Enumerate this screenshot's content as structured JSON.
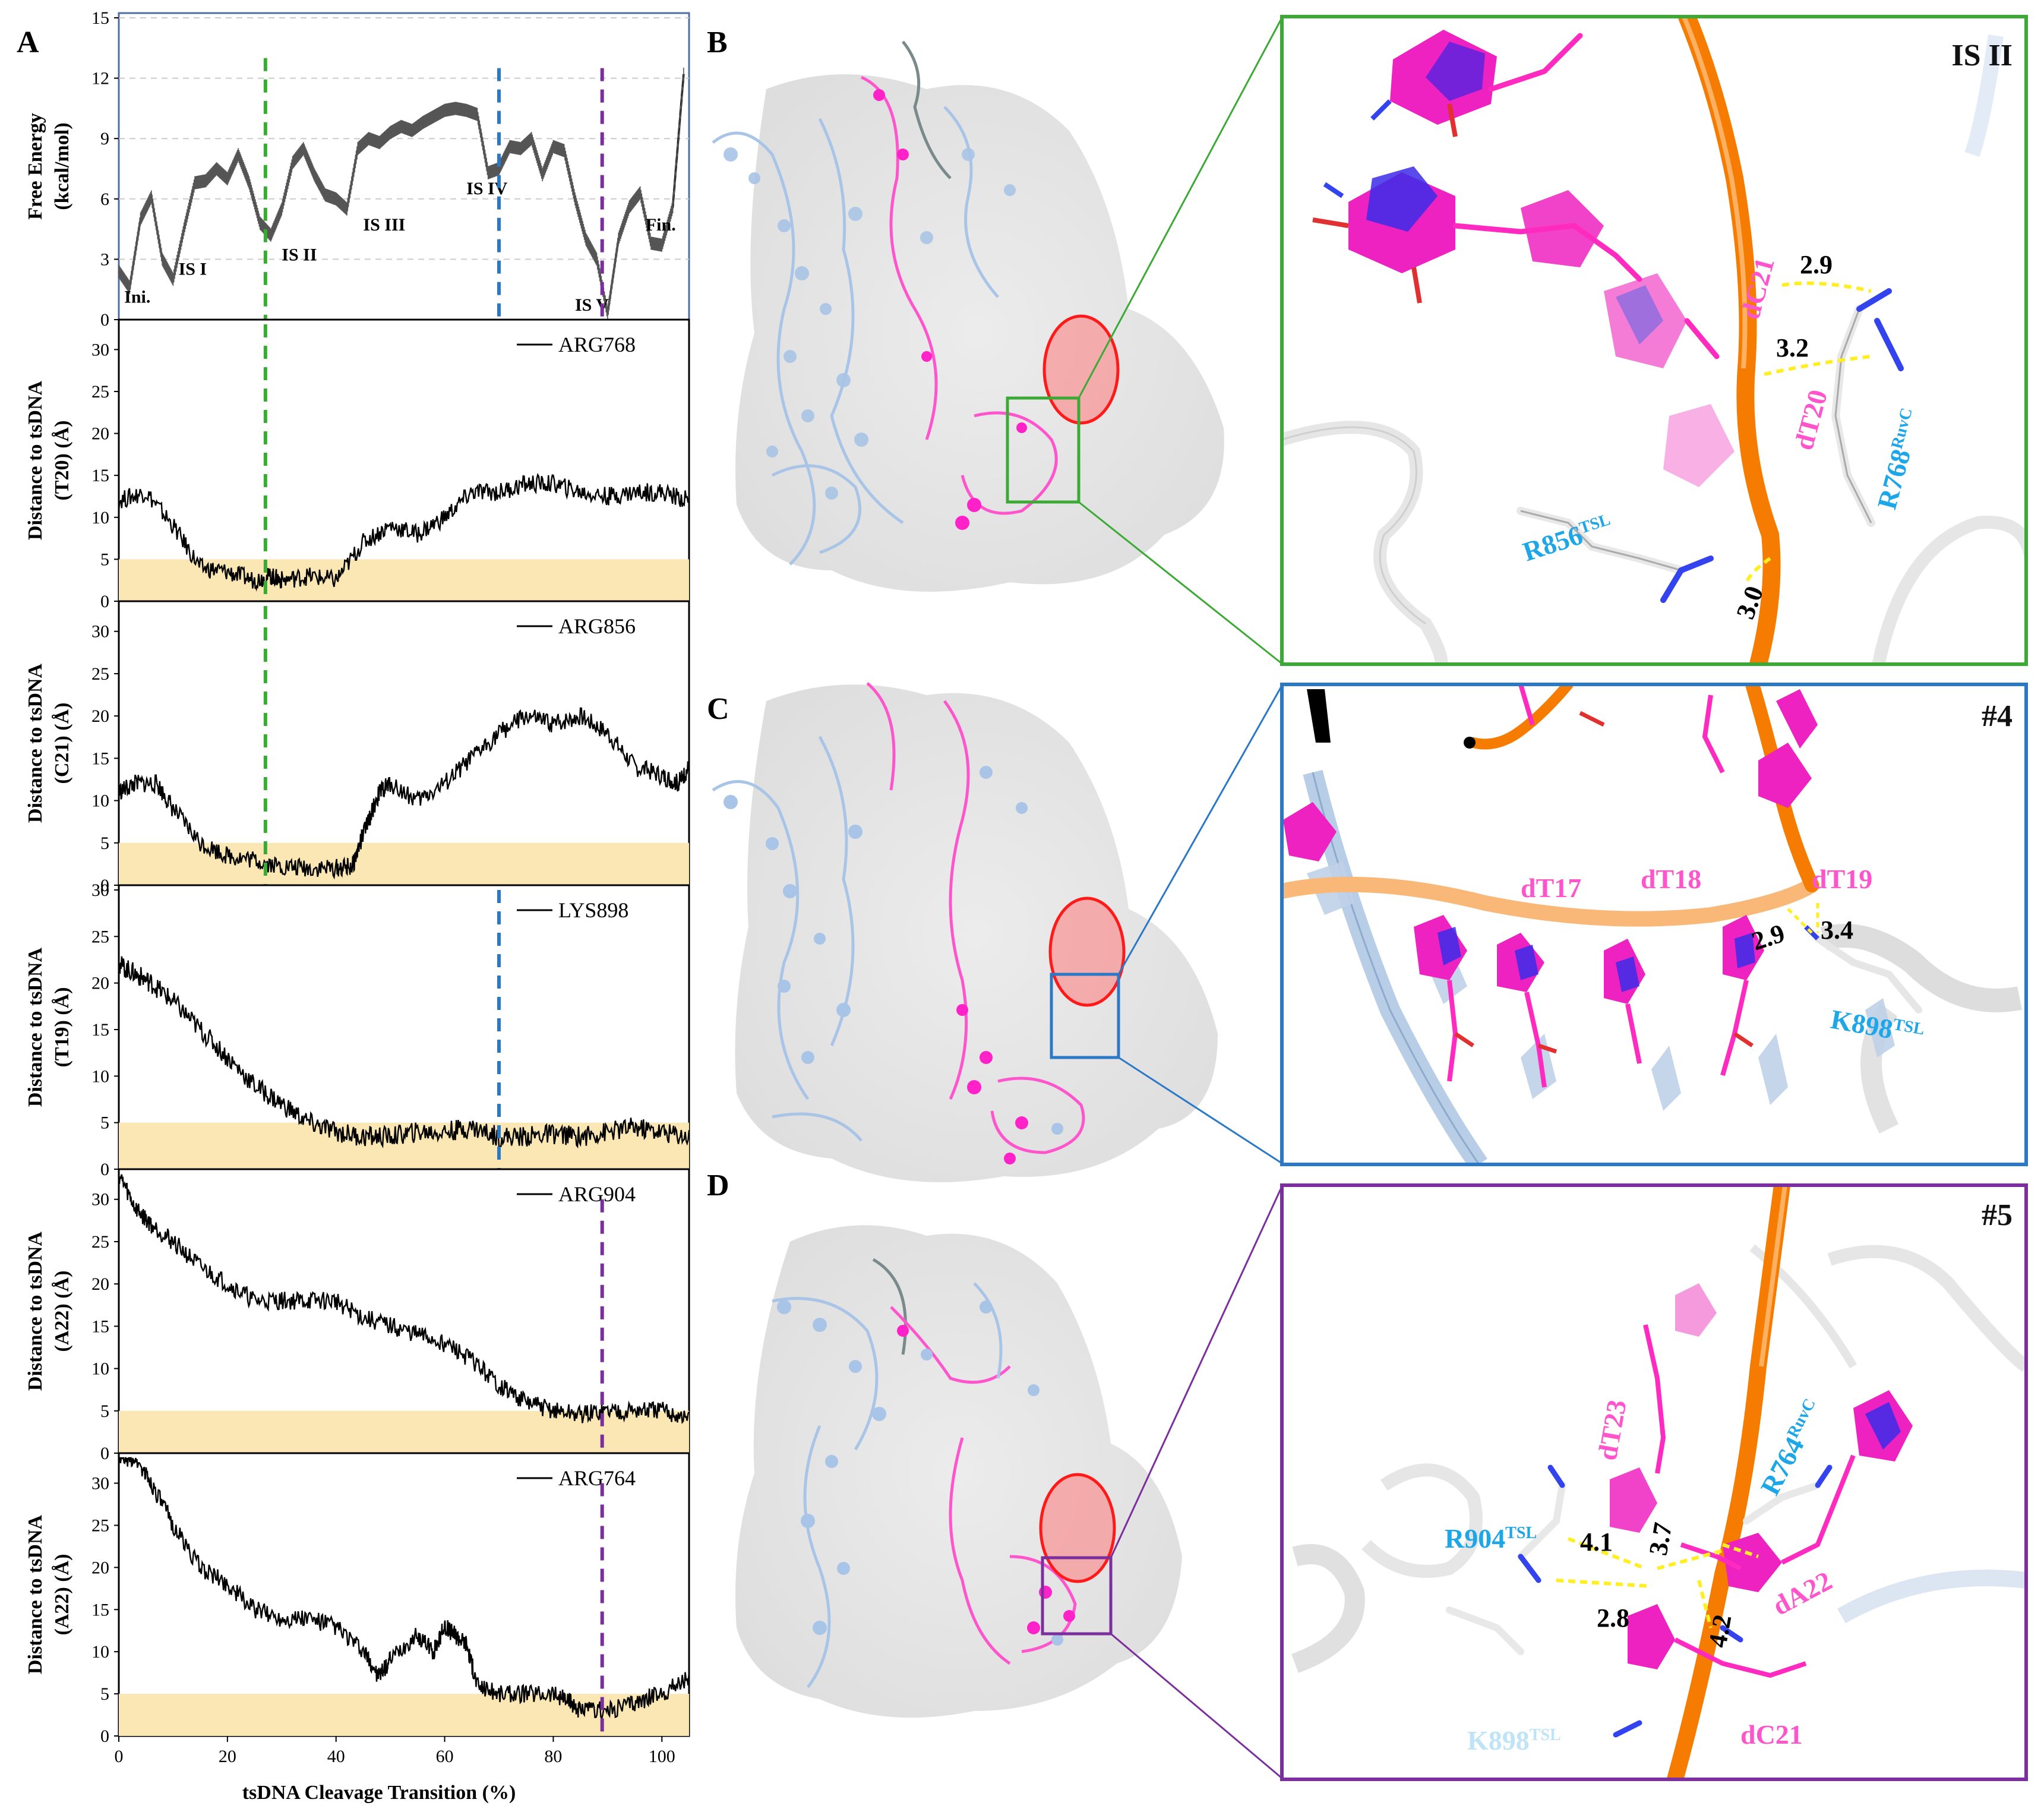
{
  "panel_labels": [
    "A",
    "B",
    "C",
    "D"
  ],
  "colors": {
    "green": "#3aaa35",
    "blue": "#2a78c8",
    "purple": "#7b2f9e",
    "band": "#fbe7b3",
    "pink": "#ff22c8",
    "orange": "#f57c00",
    "cyan_label": "#1ea7e8",
    "dna_label": "#ff55cc"
  },
  "chart_data": [
    {
      "type": "line",
      "id": "free-energy",
      "ylabel_line1": "Free Energy",
      "ylabel_line2": "(kcal/mol)",
      "ylim": [
        0,
        15
      ],
      "yticks": [
        "0",
        "3",
        "6",
        "9",
        "12",
        "15"
      ],
      "xlim": [
        0,
        105
      ],
      "grid": true,
      "error_bars": true,
      "x": [
        0,
        2,
        4,
        6,
        8,
        10,
        12,
        14,
        16,
        18,
        20,
        22,
        24,
        26,
        28,
        30,
        32,
        34,
        36,
        38,
        40,
        42,
        44,
        46,
        48,
        50,
        52,
        54,
        56,
        58,
        60,
        62,
        64,
        66,
        68,
        70,
        72,
        74,
        76,
        78,
        80,
        82,
        84,
        86,
        88,
        90,
        92,
        94,
        96,
        98,
        100,
        102,
        104
      ],
      "y": [
        2.4,
        1.6,
        5.0,
        6.1,
        3.0,
        2.0,
        4.5,
        6.8,
        6.9,
        7.5,
        7.0,
        8.2,
        6.8,
        4.8,
        4.2,
        5.5,
        7.8,
        8.5,
        7.2,
        6.2,
        6.0,
        5.5,
        8.5,
        9.0,
        8.8,
        9.3,
        9.6,
        9.4,
        9.8,
        10.1,
        10.4,
        10.5,
        10.4,
        10.2,
        7.3,
        7.5,
        8.6,
        8.5,
        9.0,
        7.2,
        8.6,
        8.4,
        6.0,
        4.0,
        3.0,
        0.3,
        4.0,
        5.6,
        6.3,
        3.8,
        3.7,
        5.6,
        12.2
      ],
      "annotations": [
        {
          "label": "Ini.",
          "x": 1,
          "y": 0.6
        },
        {
          "label": "IS I",
          "x": 11,
          "y": 2.0
        },
        {
          "label": "IS II",
          "x": 30,
          "y": 2.7
        },
        {
          "label": "IS III",
          "x": 45,
          "y": 4.2
        },
        {
          "label": "IS IV",
          "x": 64,
          "y": 6.0
        },
        {
          "label": "IS V",
          "x": 84,
          "y": 0.2
        },
        {
          "label": "Fin.",
          "x": 97,
          "y": 4.2
        }
      ],
      "markers": [
        {
          "x": 27,
          "y_from": 0,
          "y_to": 13,
          "color": "green"
        },
        {
          "x": 70,
          "y_from": 0,
          "y_to": 12.5,
          "color": "blue"
        },
        {
          "x": 89,
          "y_from": 0,
          "y_to": 12.5,
          "color": "purple"
        }
      ]
    },
    {
      "type": "line",
      "id": "arg768",
      "legend": "ARG768",
      "ylabel_line1": "Distance to tsDNA",
      "ylabel_line2": "(T20) (Å)",
      "ylim": [
        0,
        33
      ],
      "yticks": [
        "0",
        "5",
        "10",
        "15",
        "20",
        "25",
        "30"
      ],
      "xlim": [
        0,
        105
      ],
      "band": [
        0,
        5
      ],
      "x": [
        0,
        5,
        10,
        15,
        20,
        25,
        28,
        30,
        35,
        40,
        45,
        50,
        55,
        60,
        65,
        70,
        75,
        80,
        85,
        90,
        95,
        100,
        105
      ],
      "y": [
        12,
        13,
        9,
        4,
        3.5,
        2.5,
        3,
        2.5,
        3,
        2.5,
        7,
        9,
        8,
        10,
        13,
        13,
        14,
        14,
        13,
        12.5,
        13,
        13,
        12
      ],
      "markers": [
        {
          "x": 27,
          "y_from": 0,
          "y_to": 33,
          "color": "green"
        }
      ]
    },
    {
      "type": "line",
      "id": "arg856",
      "legend": "ARG856",
      "ylabel_line1": "Distance to tsDNA",
      "ylabel_line2": "(C21) (Å)",
      "ylim": [
        0,
        33
      ],
      "yticks": [
        "0",
        "5",
        "10",
        "15",
        "20",
        "25",
        "30"
      ],
      "xlim": [
        0,
        105
      ],
      "band": [
        0,
        5
      ],
      "x": [
        0,
        3,
        7,
        10,
        15,
        20,
        25,
        30,
        35,
        40,
        43,
        45,
        48,
        50,
        55,
        60,
        65,
        70,
        75,
        80,
        85,
        90,
        95,
        100,
        103,
        105
      ],
      "y": [
        11,
        12,
        12,
        9,
        5,
        3.5,
        3,
        2.2,
        2,
        2,
        2.2,
        6,
        11,
        12,
        10,
        12,
        15,
        18,
        20,
        19,
        20,
        18,
        14,
        13,
        12,
        14
      ],
      "markers": [
        {
          "x": 27,
          "y_from": 0,
          "y_to": 33,
          "color": "green"
        }
      ]
    },
    {
      "type": "line",
      "id": "lys898",
      "legend": "LYS898",
      "ylabel_line1": "Distance to tsDNA",
      "ylabel_line2": "(T19) (Å)",
      "ylim": [
        0,
        30
      ],
      "yticks": [
        "0",
        "5",
        "10",
        "15",
        "20",
        "25",
        "30"
      ],
      "xlim": [
        0,
        105
      ],
      "band": [
        0,
        5
      ],
      "x": [
        0,
        3,
        6,
        10,
        15,
        20,
        25,
        30,
        35,
        40,
        45,
        50,
        55,
        60,
        65,
        70,
        75,
        80,
        85,
        90,
        95,
        100,
        105
      ],
      "y": [
        22,
        21,
        20,
        18,
        15,
        12,
        9,
        7,
        5,
        4,
        3.5,
        3.5,
        4,
        4,
        4.5,
        3.5,
        3.5,
        3.8,
        3.5,
        4,
        4.5,
        4,
        3.5
      ],
      "markers": [
        {
          "x": 70,
          "y_from": 0,
          "y_to": 30,
          "color": "blue"
        }
      ]
    },
    {
      "type": "line",
      "id": "arg904",
      "legend": "ARG904",
      "ylabel_line1": "Distance to tsDNA",
      "ylabel_line2": "(A22) (Å)",
      "ylim": [
        0,
        33
      ],
      "yticks": [
        "0",
        "5",
        "10",
        "15",
        "20",
        "25",
        "30"
      ],
      "xlim": [
        0,
        105
      ],
      "band": [
        0,
        5
      ],
      "x": [
        0,
        3,
        6,
        10,
        15,
        20,
        25,
        30,
        35,
        40,
        45,
        50,
        55,
        60,
        65,
        70,
        75,
        80,
        85,
        90,
        95,
        100,
        105
      ],
      "y": [
        33,
        29,
        27,
        25,
        22,
        20,
        18,
        18,
        18,
        18,
        16,
        15,
        14,
        13,
        11,
        8,
        6,
        5,
        4.5,
        5,
        5,
        5,
        4
      ],
      "markers": [
        {
          "x": 89,
          "y_from": 0,
          "y_to": 30,
          "color": "purple"
        }
      ]
    },
    {
      "type": "line",
      "id": "arg764",
      "legend": "ARG764",
      "xlabel": "tsDNA Cleavage Transition (%)",
      "ylabel_line1": "Distance to tsDNA",
      "ylabel_line2": "(A22) (Å)",
      "ylim": [
        0,
        33
      ],
      "yticks": [
        "0",
        "5",
        "10",
        "15",
        "20",
        "25",
        "30"
      ],
      "xlim": [
        0,
        105
      ],
      "xticks": [
        "0",
        "20",
        "40",
        "60",
        "80",
        "100"
      ],
      "band": [
        0,
        5
      ],
      "x": [
        0,
        3,
        6,
        10,
        15,
        20,
        25,
        30,
        35,
        40,
        45,
        48,
        50,
        55,
        58,
        60,
        62,
        64,
        66,
        70,
        75,
        80,
        83,
        85,
        90,
        95,
        100,
        105
      ],
      "y": [
        33,
        33,
        30,
        25,
        20,
        18,
        15,
        14,
        14,
        13,
        10,
        7,
        9,
        12,
        10,
        13,
        12,
        11,
        6,
        5,
        5,
        5,
        4,
        3,
        3,
        4,
        5,
        7
      ],
      "markers": [
        {
          "x": 89,
          "y_from": 0,
          "y_to": 30,
          "color": "purple"
        }
      ]
    }
  ],
  "panel_b": {
    "corner_label": "IS II",
    "residues": [
      {
        "text": "dC21",
        "kind": "dna"
      },
      {
        "text": "dT20",
        "kind": "dna"
      },
      {
        "text": "R768",
        "sup": "RuvC",
        "kind": "protein"
      },
      {
        "text": "R856",
        "sup": "TSL",
        "kind": "protein"
      }
    ],
    "distances": [
      "2.9",
      "3.2",
      "3.0"
    ]
  },
  "panel_c": {
    "corner_label": "#4",
    "residues": [
      {
        "text": "dT17",
        "kind": "dna"
      },
      {
        "text": "dT18",
        "kind": "dna"
      },
      {
        "text": "dT19",
        "kind": "dna"
      },
      {
        "text": "K898",
        "sup": "TSL",
        "kind": "protein"
      }
    ],
    "distances": [
      "2.9",
      "3.4"
    ]
  },
  "panel_d": {
    "corner_label": "#5",
    "residues": [
      {
        "text": "dT23",
        "kind": "dna"
      },
      {
        "text": "R764",
        "sup": "RuvC",
        "kind": "protein"
      },
      {
        "text": "R904",
        "sup": "TSL",
        "kind": "protein"
      },
      {
        "text": "dA22",
        "kind": "dna"
      },
      {
        "text": "K898",
        "sup": "TSL",
        "kind": "protein-faint"
      },
      {
        "text": "dC21",
        "kind": "dna"
      }
    ],
    "distances": [
      "4.1",
      "3.7",
      "2.8",
      "4.2"
    ]
  }
}
